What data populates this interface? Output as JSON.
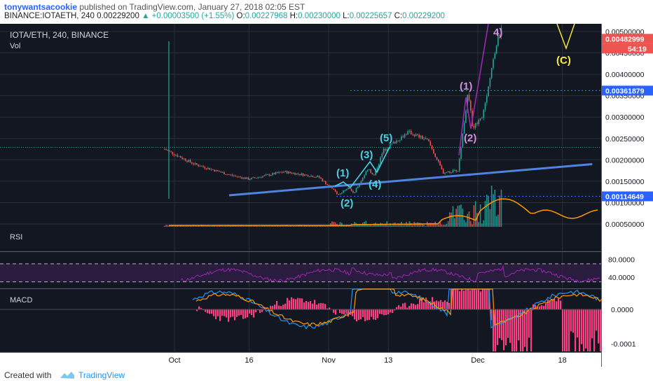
{
  "header": {
    "author": "tonywantsacookie",
    "published": "published on TradingView.com, January 27, 2018 02:05 EST",
    "symbol_line": "BINANCE:IOTAETH, 240",
    "price": "0.00229200",
    "change": "+0.00003500 (+1.55%)",
    "o_label": "O:",
    "o": "0.00227968",
    "h_label": "H:",
    "h": "0.00230000",
    "l_label": "L:",
    "l": "0.00225657",
    "c_label": "C:",
    "c": "0.00229200"
  },
  "chart_data": {
    "type": "candlestick",
    "title": "IOTA/ETH, 240, BINANCE",
    "volume_label": "Vol",
    "x_ticks": [
      "Oct",
      "16",
      "Nov",
      "13",
      "Dec",
      "18"
    ],
    "y_ticks": [
      "0.00500000",
      "0.00450000",
      "0.00400000",
      "0.00350000",
      "0.00300000",
      "0.00250000",
      "0.00200000",
      "0.00150000",
      "0.00100000",
      "0.00050000"
    ],
    "price_tags": [
      {
        "label": "0.00482999",
        "color": "#ef5350"
      },
      {
        "label": "54:19",
        "color": "#ef5350"
      },
      {
        "label": "0.00361879",
        "color": "#2962ff"
      },
      {
        "label": "0.00114649",
        "color": "#2962ff"
      }
    ],
    "price_path": [
      [
        "2017-09-29",
        0.00225
      ],
      [
        "2017-10-05",
        0.0019
      ],
      [
        "2017-10-12",
        0.00165
      ],
      [
        "2017-10-16",
        0.00155
      ],
      [
        "2017-10-23",
        0.00172
      ],
      [
        "2017-10-30",
        0.0016
      ],
      [
        "2017-11-03",
        0.00118
      ],
      [
        "2017-11-05",
        0.00138
      ],
      [
        "2017-11-06",
        0.0012
      ],
      [
        "2017-11-09",
        0.00182
      ],
      [
        "2017-11-10",
        0.0016
      ],
      [
        "2017-11-12",
        0.00222
      ],
      [
        "2017-11-17",
        0.00265
      ],
      [
        "2017-11-21",
        0.00245
      ],
      [
        "2017-11-24",
        0.0017
      ],
      [
        "2017-11-27",
        0.00175
      ],
      [
        "2017-11-29",
        0.00355
      ],
      [
        "2017-11-30",
        0.00275
      ],
      [
        "2017-12-02",
        0.00305
      ],
      [
        "2017-12-03",
        0.0036
      ],
      [
        "2017-12-05",
        0.0049
      ],
      [
        "2017-12-06",
        0.0051
      ]
    ],
    "trendline": [
      [
        "2017-10-12",
        0.00117
      ],
      [
        "2017-12-24",
        0.0019
      ]
    ],
    "horizontal_levels": [
      0.00361879,
      0.00114649,
      0.002292
    ],
    "wave_labels": [
      {
        "text": "(1)",
        "color": "#4dd0e1"
      },
      {
        "text": "(2)",
        "color": "#4dd0e1"
      },
      {
        "text": "(3)",
        "color": "#4dd0e1"
      },
      {
        "text": "(4)",
        "color": "#4dd0e1"
      },
      {
        "text": "(5)",
        "color": "#4dd0e1"
      },
      {
        "text": "(1)",
        "color": "#ce93d8"
      },
      {
        "text": "(2)",
        "color": "#ce93d8"
      },
      {
        "text": "4)",
        "color": "#ce93d8"
      },
      {
        "text": "(C)",
        "color": "#ffeb3b"
      }
    ],
    "rsi": {
      "label": "RSI",
      "ticks": [
        "80.0000",
        "40.0000"
      ],
      "upper": 70,
      "lower": 30
    },
    "macd": {
      "label": "MACD",
      "ticks": [
        "0.0000",
        "-0.0001"
      ]
    }
  },
  "footer": {
    "created_with": "Created with",
    "brand": "TradingView"
  },
  "colors": {
    "up": "#26a69a",
    "down": "#ef5350",
    "background": "#131722",
    "trendline": "#4f83e0",
    "rsi": "#9c27b0",
    "hist": "#ff4081"
  }
}
